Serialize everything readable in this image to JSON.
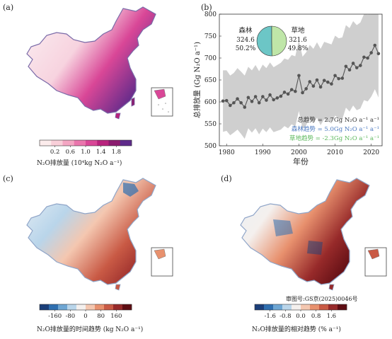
{
  "panels": {
    "a": "(a)",
    "b": "(b)",
    "c": "(c)",
    "d": "(d)"
  },
  "approval_number": "审图号:GS京(2025)0046号",
  "colorbars": {
    "a": {
      "ticks": [
        "0.2",
        "0.6",
        "1.0",
        "1.4",
        "1.8"
      ],
      "title": "N₂O排放量 (10⁴kg N₂O a⁻¹)",
      "colors": [
        "#fcecec",
        "#f9cfd9",
        "#f4a6c3",
        "#ea76ad",
        "#d94797",
        "#b8237d",
        "#8a1b6e",
        "#5e2a8a"
      ]
    },
    "c": {
      "ticks": [
        "-160",
        "-80",
        "0",
        "80",
        "160"
      ],
      "title": "N₂O排放量的时间趋势 (kg N₂O a⁻¹)",
      "colors": [
        "#1b3f7a",
        "#2f6fb0",
        "#6ea6d3",
        "#b9d5ea",
        "#f4f0ee",
        "#f4c7b0",
        "#e8916e",
        "#c95a45",
        "#972a2a",
        "#5e0d13"
      ]
    },
    "d": {
      "ticks": [
        "-1.6",
        "-0.8",
        "0.0",
        "0.8",
        "1.6"
      ],
      "title": "N₂O排放量的相对趋势 (% a⁻¹)",
      "colors": [
        "#1b3f7a",
        "#2f6fb0",
        "#6ea6d3",
        "#b9d5ea",
        "#f4f0ee",
        "#f4c7b0",
        "#e8916e",
        "#c95a45",
        "#972a2a",
        "#5e0d13"
      ]
    }
  },
  "chart_data": {
    "type": "line",
    "xlabel": "年份",
    "ylabel": "总排放量 (Gg N₂O a⁻¹)",
    "xlim": [
      1978,
      2023
    ],
    "ylim": [
      500,
      800
    ],
    "xticks": [
      "1980",
      "1990",
      "2000",
      "2010",
      "2020"
    ],
    "yticks": [
      "500",
      "550",
      "600",
      "650",
      "700",
      "750",
      "800"
    ],
    "x": [
      1979,
      1980,
      1981,
      1982,
      1983,
      1984,
      1985,
      1986,
      1987,
      1988,
      1989,
      1990,
      1991,
      1992,
      1993,
      1994,
      1995,
      1996,
      1997,
      1998,
      1999,
      2000,
      2001,
      2002,
      2003,
      2004,
      2005,
      2006,
      2007,
      2008,
      2009,
      2010,
      2011,
      2012,
      2013,
      2014,
      2015,
      2016,
      2017,
      2018,
      2019,
      2020,
      2021,
      2022
    ],
    "series": [
      {
        "values": [
          602,
          603,
          592,
          598,
          607,
          598,
          588,
          610,
          601,
          612,
          598,
          612,
          604,
          616,
          605,
          609,
          613,
          622,
          618,
          628,
          624,
          660,
          621,
          630,
          646,
          636,
          650,
          634,
          649,
          645,
          641,
          660,
          653,
          654,
          681,
          673,
          688,
          678,
          683,
          702,
          700,
          712,
          729,
          710
        ],
        "color": "#555555"
      }
    ],
    "band": {
      "upper": [
        672,
        672,
        660,
        666,
        677,
        669,
        660,
        680,
        672,
        684,
        670,
        685,
        677,
        690,
        679,
        684,
        689,
        699,
        696,
        707,
        704,
        741,
        703,
        713,
        730,
        721,
        736,
        721,
        737,
        734,
        731,
        751,
        745,
        747,
        775,
        768,
        784,
        775,
        781,
        800,
        799,
        800,
        800,
        800
      ],
      "lower": [
        532,
        534,
        524,
        530,
        537,
        527,
        516,
        540,
        530,
        540,
        526,
        539,
        531,
        542,
        531,
        534,
        537,
        545,
        540,
        549,
        544,
        579,
        539,
        547,
        562,
        551,
        564,
        547,
        561,
        556,
        551,
        569,
        561,
        561,
        587,
        578,
        592,
        581,
        585,
        604,
        601,
        612,
        629,
        610
      ],
      "color": "#cfcfcf"
    },
    "pie": {
      "slices": [
        {
          "label": "森林",
          "value": 324.6,
          "percent": "50.2%",
          "color": "#6cc6c6"
        },
        {
          "label": "草地",
          "value": 321.6,
          "percent": "49.8%",
          "color": "#bfe6a8"
        }
      ]
    },
    "annotations": [
      {
        "text": "总趋势 = 2.7Gg N₂O a⁻¹ a⁻¹",
        "color": "#333333"
      },
      {
        "text": "森林趋势 = 5.0Gg N₂O a⁻¹ a⁻¹",
        "color": "#4a78c0"
      },
      {
        "text": "草地趋势 = -2.3Gg N₂O a⁻¹ a⁻¹",
        "color": "#5cb85c"
      }
    ]
  }
}
